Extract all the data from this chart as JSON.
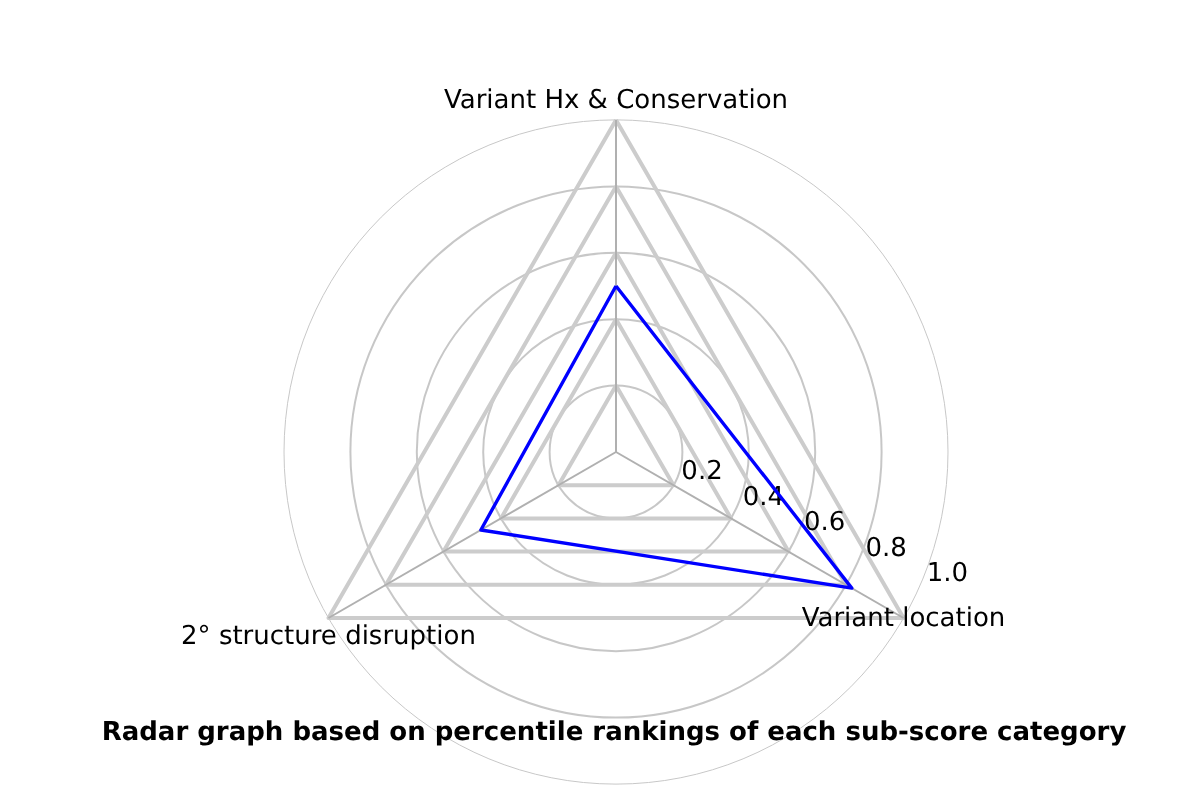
{
  "chart_data": {
    "type": "radar",
    "title": "Radar graph based on percentile rankings of each sub-score category",
    "categories": [
      "Variant Hx & Conservation",
      "Variant location",
      "2° structure disruption"
    ],
    "series": [
      {
        "color": "#0000ff",
        "values": [
          0.5,
          0.82,
          0.47
        ]
      }
    ],
    "ylim": [
      0,
      1
    ],
    "yticks": [
      0.2,
      0.4,
      0.6,
      0.8,
      {
        "value": 1,
        "label": "1.0"
      }
    ],
    "grid": true
  }
}
